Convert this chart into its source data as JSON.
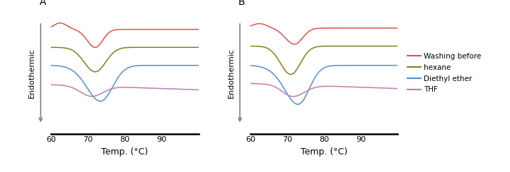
{
  "xlim": [
    60,
    100
  ],
  "xlabel": "Temp. (°C)",
  "ylabel": "Endothermic",
  "panel_A_label": "A",
  "panel_B_label": "B",
  "colors": {
    "red": "#e05050",
    "olive": "#808020",
    "blue": "#5090c8",
    "pink": "#c878b0"
  },
  "legend_labels": [
    "Washing before",
    "hexane",
    "Diethyl ether",
    "THF"
  ],
  "legend_colors": [
    "#e05050",
    "#808020",
    "#5090c8",
    "#c878b0"
  ],
  "xticks": [
    60,
    70,
    80,
    90
  ],
  "background": "#ffffff",
  "figsize": [
    7.21,
    2.44
  ],
  "dpi": 100
}
